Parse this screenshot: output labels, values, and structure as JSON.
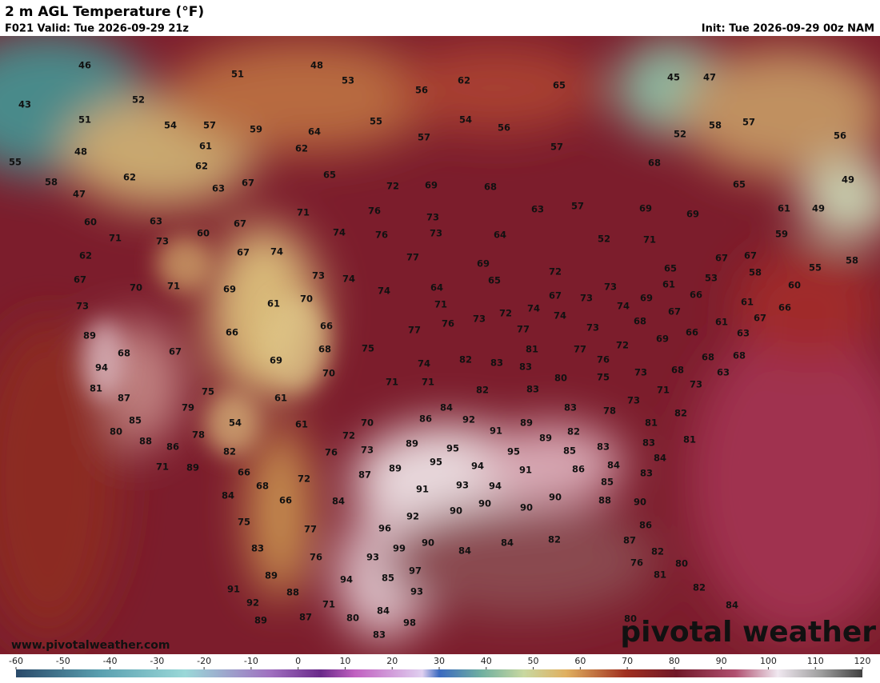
{
  "header": {
    "title": "2 m AGL Temperature (°F)",
    "valid": "F021 Valid: Tue 2026-09-29 21z",
    "init": "Init: Tue 2026-09-29 00z NAM"
  },
  "map": {
    "labels": [
      46,
      51,
      48,
      53,
      56,
      62,
      65,
      45,
      47,
      43,
      52,
      51,
      54,
      57,
      59,
      64,
      55,
      54,
      56,
      58,
      57,
      56,
      48,
      61,
      62,
      57,
      57,
      52,
      55,
      62,
      65,
      68,
      62,
      58,
      63,
      67,
      72,
      69,
      68,
      65,
      49,
      47,
      57,
      69,
      69,
      61,
      49,
      71,
      76,
      73,
      63,
      60,
      63,
      67,
      71,
      73,
      60,
      74,
      76,
      73,
      64,
      52,
      71,
      59,
      62,
      67,
      74,
      77,
      69,
      72,
      67,
      67,
      55,
      58,
      67,
      73,
      74,
      65,
      53,
      58,
      70,
      71,
      69,
      74,
      64,
      65,
      73,
      61,
      66,
      60,
      73,
      61,
      70,
      71,
      67,
      73,
      69,
      61,
      72,
      74,
      74,
      74,
      67,
      66,
      89,
      66,
      66,
      77,
      76,
      73,
      77,
      73,
      68,
      66,
      61,
      67,
      63,
      68,
      67,
      68,
      75,
      81,
      77,
      72,
      69,
      68,
      68,
      94,
      69,
      82,
      83,
      83,
      76,
      70,
      74,
      68,
      63,
      81,
      71,
      71,
      80,
      75,
      73,
      73,
      87,
      75,
      61,
      82,
      83,
      71,
      79,
      84,
      83,
      78,
      73,
      82,
      85,
      54,
      61,
      70,
      86,
      92,
      89,
      81,
      80,
      78,
      91,
      82,
      72,
      81,
      88,
      86,
      89,
      83,
      83,
      82,
      76,
      73,
      89,
      95,
      95,
      85,
      71,
      89,
      95,
      94,
      91,
      86,
      84,
      84,
      66,
      87,
      89,
      83,
      72,
      68,
      93,
      94,
      85,
      84,
      66,
      84,
      91,
      88,
      90,
      90,
      90,
      90,
      90,
      92,
      75,
      77,
      96,
      86,
      83,
      76,
      99,
      90,
      84,
      84,
      82,
      87,
      82,
      93,
      80,
      76,
      89,
      97,
      85,
      94,
      81,
      91,
      88,
      93,
      82,
      92,
      71,
      84,
      89,
      87,
      80,
      84,
      98,
      80,
      83
    ]
  },
  "footer": {
    "url": "www.pivotalweather.com",
    "brand": "pivotal weather"
  },
  "colorbar": {
    "lim": [
      -60,
      120
    ],
    "ticks": [
      -60,
      -50,
      -40,
      -30,
      -20,
      -10,
      0,
      10,
      20,
      30,
      40,
      50,
      60,
      70,
      80,
      90,
      100,
      110,
      120
    ]
  }
}
